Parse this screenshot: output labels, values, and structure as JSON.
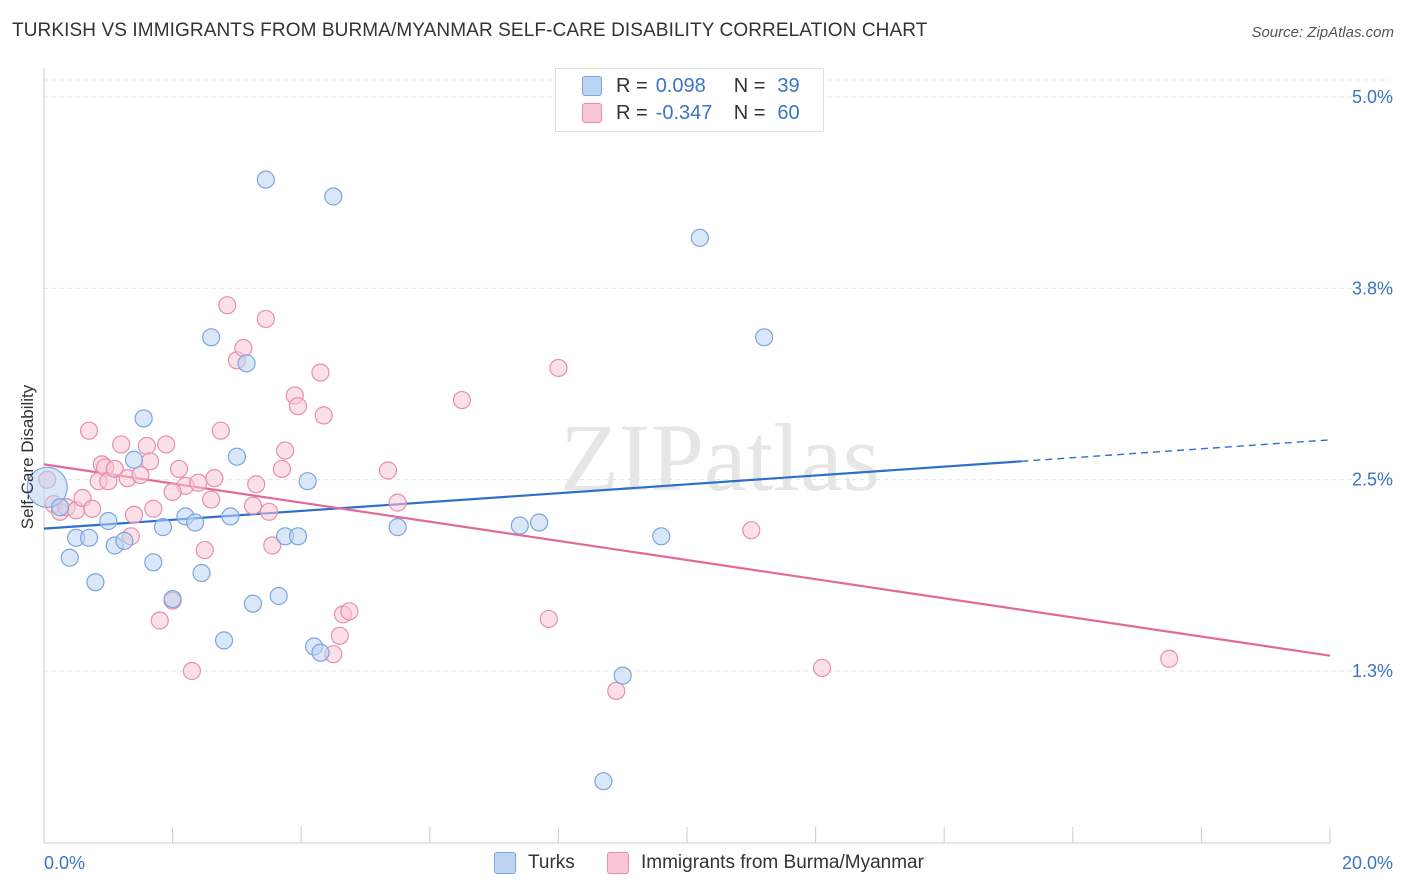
{
  "title": "TURKISH VS IMMIGRANTS FROM BURMA/MYANMAR SELF-CARE DISABILITY CORRELATION CHART",
  "source": "Source: ZipAtlas.com",
  "watermark": "ZIPatlas",
  "colors": {
    "blue_fill": "#bcd4f2",
    "blue_stroke": "#7aa6dc",
    "blue_line": "#2f6fcc",
    "pink_fill": "#f8c6d6",
    "pink_stroke": "#e58fae",
    "pink_line": "#e2699a",
    "tick_label": "#3a75c4"
  },
  "legend": {
    "rows": [
      {
        "r_label": "R =",
        "r_value": "0.098",
        "n_label": "N =",
        "n_value": "39"
      },
      {
        "r_label": "R =",
        "r_value": "-0.347",
        "n_label": "N =",
        "n_value": "60"
      }
    ]
  },
  "bottom_legend": {
    "turks": "Turks",
    "burma": "Immigrants from Burma/Myanmar"
  },
  "chart_data": {
    "type": "scatter",
    "title": "TURKISH VS IMMIGRANTS FROM BURMA/MYANMAR SELF-CARE DISABILITY CORRELATION CHART",
    "xlabel": "",
    "ylabel": "Self-Care Disability",
    "xlim": [
      0,
      20
    ],
    "ylim": [
      0,
      5.25
    ],
    "x_tick_labels": [
      "0.0%",
      "20.0%"
    ],
    "y_ticks": [
      1.25,
      2.5,
      3.75,
      5.0
    ],
    "y_tick_labels": [
      "1.3%",
      "2.5%",
      "3.8%",
      "5.0%"
    ],
    "grid": true,
    "series": [
      {
        "name": "Turks",
        "r": 0.098,
        "n": 39,
        "trend": {
          "x": [
            0,
            15.2
          ],
          "y": [
            2.18,
            2.62
          ],
          "dashed_to": {
            "x": 20,
            "y": 2.76
          }
        },
        "points": [
          [
            0.05,
            2.45
          ],
          [
            0.25,
            2.32
          ],
          [
            0.5,
            2.12
          ],
          [
            0.7,
            2.12
          ],
          [
            0.4,
            1.99
          ],
          [
            0.8,
            1.83
          ],
          [
            1.0,
            2.23
          ],
          [
            1.1,
            2.07
          ],
          [
            1.25,
            2.1
          ],
          [
            1.4,
            2.63
          ],
          [
            1.55,
            2.9
          ],
          [
            1.7,
            1.96
          ],
          [
            1.85,
            2.19
          ],
          [
            2.0,
            1.72
          ],
          [
            2.2,
            2.26
          ],
          [
            2.35,
            2.22
          ],
          [
            2.45,
            1.89
          ],
          [
            2.6,
            3.43
          ],
          [
            2.8,
            1.45
          ],
          [
            2.9,
            2.26
          ],
          [
            3.0,
            2.65
          ],
          [
            3.15,
            3.26
          ],
          [
            3.25,
            1.69
          ],
          [
            3.45,
            4.46
          ],
          [
            3.65,
            1.74
          ],
          [
            3.75,
            2.13
          ],
          [
            3.95,
            2.13
          ],
          [
            4.1,
            2.49
          ],
          [
            4.2,
            1.41
          ],
          [
            4.3,
            1.37
          ],
          [
            4.5,
            4.35
          ],
          [
            5.5,
            2.19
          ],
          [
            7.4,
            2.2
          ],
          [
            7.7,
            2.22
          ],
          [
            8.7,
            0.53
          ],
          [
            9.6,
            2.13
          ],
          [
            9.0,
            1.22
          ],
          [
            10.2,
            4.08
          ],
          [
            11.2,
            3.43
          ]
        ]
      },
      {
        "name": "Immigrants from Burma/Myanmar",
        "r": -0.347,
        "n": 60,
        "trend": {
          "x": [
            0,
            20
          ],
          "y": [
            2.6,
            1.35
          ]
        },
        "points": [
          [
            0.15,
            2.34
          ],
          [
            0.25,
            2.29
          ],
          [
            0.35,
            2.32
          ],
          [
            0.5,
            2.3
          ],
          [
            0.6,
            2.38
          ],
          [
            0.7,
            2.82
          ],
          [
            0.75,
            2.31
          ],
          [
            0.85,
            2.49
          ],
          [
            0.9,
            2.6
          ],
          [
            0.95,
            2.58
          ],
          [
            1.0,
            2.49
          ],
          [
            1.1,
            2.57
          ],
          [
            1.2,
            2.73
          ],
          [
            1.3,
            2.51
          ],
          [
            1.35,
            2.13
          ],
          [
            1.5,
            2.53
          ],
          [
            1.6,
            2.72
          ],
          [
            1.65,
            2.62
          ],
          [
            1.7,
            2.31
          ],
          [
            1.8,
            1.58
          ],
          [
            1.9,
            2.73
          ],
          [
            2.0,
            1.71
          ],
          [
            2.1,
            2.57
          ],
          [
            2.2,
            2.46
          ],
          [
            2.3,
            1.25
          ],
          [
            2.4,
            2.48
          ],
          [
            2.5,
            2.04
          ],
          [
            2.6,
            2.37
          ],
          [
            2.65,
            2.51
          ],
          [
            2.75,
            2.82
          ],
          [
            2.85,
            3.64
          ],
          [
            3.0,
            3.28
          ],
          [
            3.1,
            3.36
          ],
          [
            3.25,
            2.33
          ],
          [
            3.3,
            2.47
          ],
          [
            3.45,
            3.55
          ],
          [
            3.5,
            2.29
          ],
          [
            3.55,
            2.07
          ],
          [
            3.7,
            2.57
          ],
          [
            3.75,
            2.69
          ],
          [
            3.9,
            3.05
          ],
          [
            3.95,
            2.98
          ],
          [
            4.3,
            3.2
          ],
          [
            4.35,
            2.92
          ],
          [
            4.5,
            1.36
          ],
          [
            4.6,
            1.48
          ],
          [
            4.65,
            1.62
          ],
          [
            4.75,
            1.64
          ],
          [
            5.35,
            2.56
          ],
          [
            5.5,
            2.35
          ],
          [
            6.5,
            3.02
          ],
          [
            7.85,
            1.59
          ],
          [
            8.0,
            3.23
          ],
          [
            8.9,
            1.12
          ],
          [
            11.0,
            2.17
          ],
          [
            12.1,
            1.27
          ],
          [
            17.5,
            1.33
          ],
          [
            0.05,
            2.5
          ],
          [
            1.4,
            2.27
          ],
          [
            2.0,
            2.42
          ]
        ]
      }
    ]
  }
}
